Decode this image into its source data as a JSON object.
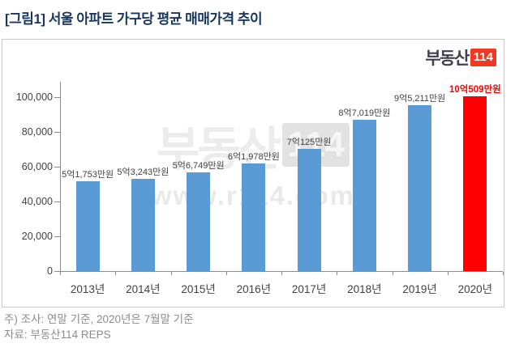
{
  "title": "[그림1] 서울 아파트 가구당 평균 매매가격 추이",
  "logo": {
    "text": "부동산",
    "badge": "114"
  },
  "watermark": {
    "brand": "부동산",
    "badge": "114",
    "url": "www.r114.com"
  },
  "notes": {
    "line1": "주) 조사: 연말 기준, 2020년은 7월말 기준",
    "line2": "자료: 부동산114 REPS"
  },
  "colors": {
    "title_navy": "#17375E",
    "bar_blue": "#5B9BD5",
    "bar_red": "#FF0000",
    "logo_badge_red": "#F23722",
    "axis_gray": "#8C8C8C"
  },
  "chart_data": {
    "type": "bar",
    "title": "서울 아파트 가구당 평균 매매가격 추이",
    "unit": "만원",
    "categories": [
      "2013년",
      "2014년",
      "2015년",
      "2016년",
      "2017년",
      "2018년",
      "2019년",
      "2020년"
    ],
    "values": [
      51753,
      53243,
      56749,
      61978,
      70125,
      87019,
      95211,
      100509
    ],
    "labels": [
      "5억1,753만원",
      "5억3,243만원",
      "5억6,749만원",
      "6억1,978만원",
      "7억125만원",
      "8억7,019만원",
      "9억5,211만원",
      "10억509만원"
    ],
    "bar_colors": [
      "#5B9BD5",
      "#5B9BD5",
      "#5B9BD5",
      "#5B9BD5",
      "#5B9BD5",
      "#5B9BD5",
      "#5B9BD5",
      "#FF0000"
    ],
    "highlight_index": 7,
    "ylim": [
      0,
      107000
    ],
    "yticks": [
      0,
      20000,
      40000,
      60000,
      80000,
      100000
    ],
    "ytick_labels": [
      "0",
      "20,000",
      "40,000",
      "60,000",
      "80,000",
      "100,000"
    ],
    "grid": false,
    "legend": false
  }
}
